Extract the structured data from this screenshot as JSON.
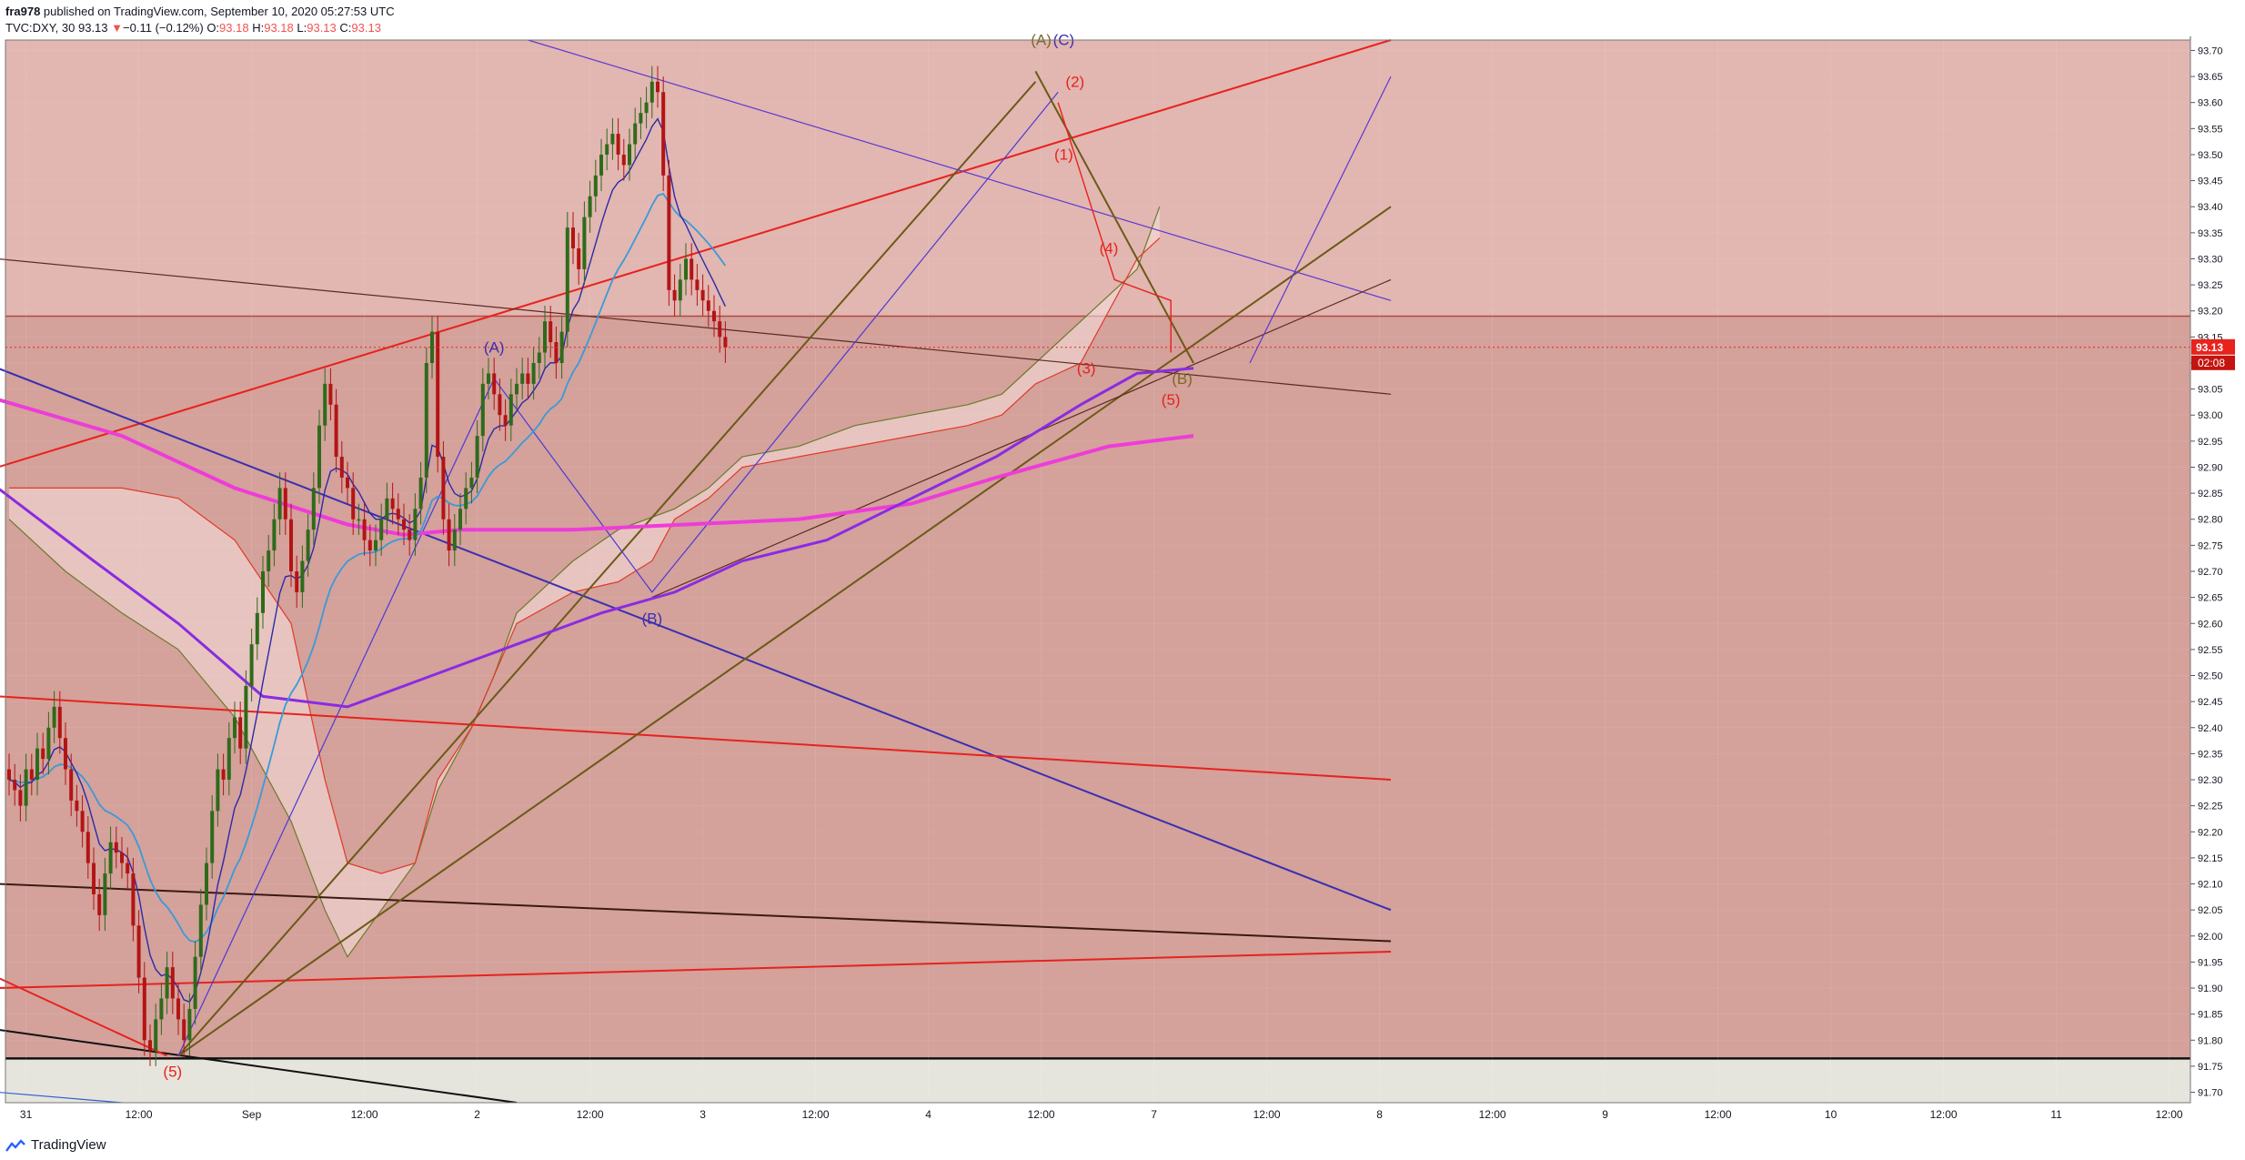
{
  "header": {
    "line1": {
      "publisher": "fra978",
      "rest": " published on TradingView.com, September 10, 2020 05:27:53 UTC"
    },
    "line2": {
      "symbol": "TVC:DXY, 30",
      "last": "93.13",
      "change_symbol": "▼",
      "change": "−0.11 (−0.12%)",
      "o_label": "O:",
      "o": "93.18",
      "h_label": "H:",
      "h": "93.18",
      "l_label": "L:",
      "l": "93.13",
      "c_label": "C:",
      "c": "93.13"
    }
  },
  "footer": {
    "brand": "TradingView"
  },
  "price_label": {
    "price": "93.13",
    "countdown": "02:08"
  },
  "colors": {
    "background_upper": "#e2b6b1",
    "background_lower": "#d4a19b",
    "background_bottom": "#e6e5dd",
    "bull": "#2e6b1a",
    "bear": "#b31414",
    "accent_red": "#e8221d"
  },
  "chart_data": {
    "type": "candlestick",
    "instrument": "TVC:DXY",
    "timeframe": "30",
    "y_range": [
      91.68,
      93.72
    ],
    "y_ticks": [
      "93.70",
      "93.65",
      "93.60",
      "93.55",
      "93.50",
      "93.45",
      "93.40",
      "93.35",
      "93.30",
      "93.25",
      "93.20",
      "93.15",
      "93.10",
      "93.05",
      "93.00",
      "92.95",
      "92.90",
      "92.85",
      "92.80",
      "92.75",
      "92.70",
      "92.65",
      "92.60",
      "92.55",
      "92.50",
      "92.45",
      "92.40",
      "92.35",
      "92.30",
      "92.25",
      "92.20",
      "92.15",
      "92.10",
      "92.05",
      "92.00",
      "91.95",
      "91.90",
      "91.85",
      "91.80",
      "91.75",
      "91.70"
    ],
    "x_ticks": [
      "31",
      "12:00",
      "Sep",
      "12:00",
      "2",
      "12:00",
      "3",
      "12:00",
      "4",
      "12:00",
      "7",
      "12:00",
      "8",
      "12:00",
      "9",
      "12:00",
      "10",
      "12:00",
      "11",
      "12:00"
    ],
    "x_tick_bar_index": [
      3,
      23,
      43,
      63,
      83,
      103,
      123,
      143,
      163,
      183,
      203,
      223,
      243,
      263,
      283,
      303,
      323,
      343,
      363,
      383
    ],
    "closes": [
      92.3,
      92.28,
      92.25,
      92.32,
      92.3,
      92.36,
      92.34,
      92.4,
      92.44,
      92.38,
      92.32,
      92.26,
      92.24,
      92.2,
      92.14,
      92.08,
      92.04,
      92.12,
      92.18,
      92.16,
      92.14,
      92.12,
      92.02,
      91.92,
      91.8,
      91.78,
      91.84,
      91.88,
      91.94,
      91.88,
      91.84,
      91.8,
      91.86,
      91.96,
      92.06,
      92.14,
      92.24,
      92.32,
      92.3,
      92.38,
      92.42,
      92.36,
      92.48,
      92.56,
      92.62,
      92.7,
      92.74,
      92.8,
      92.86,
      92.8,
      92.7,
      92.66,
      92.72,
      92.78,
      92.86,
      92.98,
      93.06,
      93.02,
      92.92,
      92.88,
      92.86,
      92.8,
      92.8,
      92.76,
      92.74,
      92.76,
      92.8,
      92.84,
      92.82,
      92.8,
      92.78,
      92.76,
      92.82,
      92.88,
      93.1,
      93.16,
      92.92,
      92.8,
      92.74,
      92.78,
      92.82,
      92.86,
      92.88,
      92.96,
      93.06,
      93.08,
      93.04,
      93.0,
      92.98,
      93.04,
      93.06,
      93.08,
      93.06,
      93.1,
      93.12,
      93.18,
      93.14,
      93.1,
      93.16,
      93.36,
      93.32,
      93.28,
      93.38,
      93.42,
      93.46,
      93.5,
      93.52,
      93.54,
      93.5,
      93.48,
      93.52,
      93.56,
      93.58,
      93.6,
      93.64,
      93.62,
      93.46,
      93.24,
      93.22,
      93.26,
      93.3,
      93.26,
      93.24,
      93.22,
      93.2,
      93.18,
      93.15,
      93.13
    ],
    "annotations": [
      {
        "text": "(5)",
        "color": "red"
      },
      {
        "text": "(A)",
        "color": "blue"
      },
      {
        "text": "(B)",
        "color": "blue"
      },
      {
        "text": "(A)",
        "color": "olive"
      },
      {
        "text": "(C)",
        "color": "blue"
      },
      {
        "text": "(2)",
        "color": "red"
      },
      {
        "text": "(1)",
        "color": "red"
      },
      {
        "text": "(4)",
        "color": "red"
      },
      {
        "text": "(3)",
        "color": "red"
      },
      {
        "text": "(5)",
        "color": "red"
      },
      {
        "text": "(B)",
        "color": "olive"
      }
    ]
  }
}
